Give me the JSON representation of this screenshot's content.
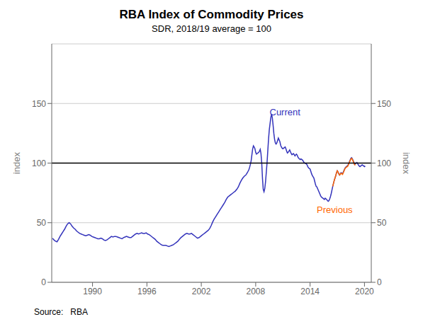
{
  "chart_data": {
    "type": "line",
    "title": "RBA Index of Commodity Prices",
    "subtitle": "SDR, 2018/19 average = 100",
    "source": "Source:   RBA",
    "ylabel": "index",
    "y2label": "index",
    "xlim": [
      1985.5,
      2020.75
    ],
    "xticks": [
      1990,
      1996,
      2002,
      2008,
      2014,
      2020
    ],
    "ylim": [
      0,
      200
    ],
    "yticks": [
      0,
      50,
      100,
      150
    ],
    "y2lim": [
      0,
      200
    ],
    "y2ticks": [
      0,
      50,
      100,
      150
    ],
    "grid": true,
    "reference_line": {
      "value": 100,
      "color": "#000000"
    },
    "annotations": [
      {
        "text": "Current",
        "x": 2009.3,
        "y": 143,
        "color": "#3333bb"
      },
      {
        "text": "Previous",
        "x": 2014.5,
        "y": 61,
        "color": "#ff6600"
      }
    ],
    "series": [
      {
        "color": "#3333bb",
        "x": [
          1985.583,
          1985.75,
          1985.917,
          1986.083,
          1986.25,
          1986.417,
          1986.583,
          1986.75,
          1986.917,
          1987.083,
          1987.25,
          1987.417,
          1987.583,
          1987.75,
          1987.917,
          1988.083,
          1988.25,
          1988.417,
          1988.583,
          1988.75,
          1988.917,
          1989.083,
          1989.25,
          1989.417,
          1989.583,
          1989.75,
          1989.917,
          1990.083,
          1990.25,
          1990.417,
          1990.583,
          1990.75,
          1990.917,
          1991.083,
          1991.25,
          1991.417,
          1991.583,
          1991.75,
          1991.917,
          1992.083,
          1992.25,
          1992.417,
          1992.583,
          1992.75,
          1992.917,
          1993.083,
          1993.25,
          1993.417,
          1993.583,
          1993.75,
          1993.917,
          1994.083,
          1994.25,
          1994.417,
          1994.583,
          1994.75,
          1994.917,
          1995.083,
          1995.25,
          1995.417,
          1995.583,
          1995.75,
          1995.917,
          1996.083,
          1996.25,
          1996.417,
          1996.583,
          1996.75,
          1996.917,
          1997.083,
          1997.25,
          1997.417,
          1997.583,
          1997.75,
          1997.917,
          1998.083,
          1998.25,
          1998.417,
          1998.583,
          1998.75,
          1998.917,
          1999.083,
          1999.25,
          1999.417,
          1999.583,
          1999.75,
          1999.917,
          2000.083,
          2000.25,
          2000.417,
          2000.583,
          2000.75,
          2000.917,
          2001.083,
          2001.25,
          2001.417,
          2001.583,
          2001.75,
          2001.917,
          2002.083,
          2002.25,
          2002.417,
          2002.583,
          2002.75,
          2002.917,
          2003.083,
          2003.25,
          2003.417,
          2003.583,
          2003.75,
          2003.917,
          2004.083,
          2004.25,
          2004.417,
          2004.583,
          2004.75,
          2004.917,
          2005.083,
          2005.25,
          2005.417,
          2005.583,
          2005.75,
          2005.917,
          2006.083,
          2006.25,
          2006.417,
          2006.583,
          2006.75,
          2006.917,
          2007.083,
          2007.25,
          2007.333,
          2007.417,
          2007.5,
          2007.583,
          2007.667,
          2007.75,
          2007.833,
          2007.917,
          2008.0,
          2008.083,
          2008.167,
          2008.25,
          2008.333,
          2008.417,
          2008.5,
          2008.583,
          2008.667,
          2008.75,
          2008.833,
          2008.917,
          2009.0,
          2009.083,
          2009.167,
          2009.25,
          2009.333,
          2009.417,
          2009.5,
          2009.583,
          2009.667,
          2009.75,
          2009.833,
          2009.917,
          2010.0,
          2010.083,
          2010.167,
          2010.25,
          2010.333,
          2010.417,
          2010.5,
          2010.583,
          2010.667,
          2010.75,
          2010.833,
          2010.917,
          2011.0,
          2011.083,
          2011.167,
          2011.25,
          2011.333,
          2011.417,
          2011.5,
          2011.583,
          2011.667,
          2011.75,
          2011.833,
          2011.917,
          2012.0,
          2012.083,
          2012.167,
          2012.25,
          2012.333,
          2012.417,
          2012.5,
          2012.583,
          2012.667,
          2012.75,
          2012.833,
          2012.917,
          2013.0,
          2013.083,
          2013.167,
          2013.25,
          2013.333,
          2013.417,
          2013.5,
          2013.583,
          2013.667,
          2013.75,
          2013.833,
          2013.917,
          2014.0,
          2014.083,
          2014.167,
          2014.25,
          2014.333,
          2014.417,
          2014.5,
          2014.583,
          2014.667,
          2014.75,
          2014.833,
          2014.917,
          2015.0,
          2015.083,
          2015.167,
          2015.25,
          2015.333,
          2015.417,
          2015.5,
          2015.583,
          2015.667,
          2015.75,
          2015.833,
          2015.917,
          2016.0,
          2016.083,
          2016.167,
          2016.25,
          2016.333,
          2016.417,
          2016.5,
          2016.583,
          2016.667,
          2016.75,
          2016.833,
          2016.917,
          2017.0,
          2017.083,
          2017.167,
          2017.25,
          2017.333,
          2017.417,
          2017.5,
          2017.583,
          2017.667,
          2017.75,
          2017.833,
          2017.917,
          2018.0,
          2018.083,
          2018.167,
          2018.25,
          2018.333,
          2018.417,
          2018.5,
          2018.583,
          2018.667,
          2018.75,
          2018.833,
          2018.917,
          2019.0,
          2019.083,
          2019.167,
          2019.25,
          2019.333,
          2019.417,
          2019.5,
          2019.583,
          2019.667,
          2019.75,
          2019.833,
          2019.917,
          2020.0,
          2020.083
        ],
        "values": [
          37.0,
          35.5,
          34.5,
          34.0,
          36.0,
          38.5,
          40.5,
          42.5,
          44.5,
          47.0,
          49.0,
          50.0,
          49.0,
          47.0,
          45.5,
          44.5,
          43.0,
          42.0,
          41.0,
          40.5,
          40.0,
          39.5,
          39.0,
          39.5,
          40.0,
          39.5,
          38.5,
          38.0,
          37.5,
          37.0,
          36.5,
          36.5,
          37.0,
          36.5,
          35.5,
          35.0,
          35.5,
          36.5,
          37.5,
          38.5,
          38.0,
          38.5,
          38.5,
          38.0,
          37.5,
          37.0,
          36.5,
          37.5,
          38.0,
          38.5,
          38.0,
          37.5,
          37.5,
          38.5,
          39.5,
          40.5,
          41.0,
          40.5,
          41.0,
          41.5,
          41.0,
          41.0,
          41.5,
          40.5,
          40.0,
          39.0,
          38.0,
          37.0,
          36.0,
          34.5,
          33.5,
          32.5,
          31.5,
          31.0,
          31.0,
          31.0,
          30.5,
          30.0,
          30.5,
          31.0,
          31.5,
          32.5,
          33.5,
          34.5,
          36.0,
          37.5,
          38.5,
          39.5,
          40.5,
          41.0,
          40.5,
          40.5,
          41.0,
          40.0,
          39.0,
          38.0,
          37.0,
          37.5,
          38.5,
          39.5,
          40.5,
          41.5,
          42.5,
          43.5,
          45.0,
          47.5,
          50.5,
          53.0,
          55.0,
          57.0,
          59.0,
          61.0,
          63.0,
          65.0,
          67.0,
          69.5,
          71.5,
          72.5,
          73.5,
          74.5,
          75.5,
          76.5,
          78.0,
          80.0,
          83.0,
          85.5,
          87.5,
          89.0,
          90.0,
          92.0,
          94.5,
          96.5,
          99.0,
          102.0,
          107.0,
          112.0,
          114.5,
          113.5,
          112.0,
          109.0,
          107.5,
          108.0,
          108.5,
          109.0,
          110.0,
          111.5,
          108.0,
          100.0,
          87.0,
          78.0,
          76.0,
          78.5,
          84.0,
          92.0,
          100.0,
          110.0,
          120.0,
          128.0,
          133.0,
          138.0,
          141.0,
          138.0,
          132.0,
          125.0,
          120.0,
          117.0,
          116.0,
          117.0,
          119.0,
          121.0,
          119.5,
          118.0,
          115.0,
          113.5,
          112.5,
          112.0,
          112.5,
          113.0,
          113.5,
          112.0,
          110.0,
          108.5,
          109.0,
          110.0,
          111.0,
          109.5,
          108.0,
          107.0,
          107.5,
          108.0,
          107.0,
          106.0,
          107.0,
          107.5,
          106.5,
          105.0,
          104.0,
          103.5,
          103.0,
          103.5,
          103.0,
          102.5,
          101.5,
          100.5,
          100.0,
          99.5,
          99.5,
          98.5,
          97.0,
          96.0,
          95.5,
          95.0,
          93.0,
          91.0,
          89.5,
          88.5,
          87.5,
          85.0,
          82.5,
          80.5,
          80.0,
          78.5,
          77.0,
          75.5,
          74.0,
          72.5,
          71.5,
          71.0,
          70.5,
          70.0,
          69.5,
          70.5,
          70.0,
          69.5,
          68.5,
          68.0,
          68.5,
          70.0,
          72.0,
          74.5,
          77.5,
          80.5,
          83.0,
          85.5,
          87.5,
          89.5,
          92.0,
          93.5,
          92.5,
          91.0,
          90.0,
          91.0,
          92.0,
          91.5,
          91.0,
          92.5,
          94.0,
          95.5,
          96.5,
          97.0,
          97.5,
          98.0,
          99.5,
          101.0,
          102.5,
          104.0,
          104.5,
          103.5,
          102.0,
          100.5,
          99.0,
          99.5,
          100.0,
          100.5,
          99.5,
          98.5,
          97.5,
          97.0,
          97.5,
          98.0,
          98.5,
          98.0,
          97.5,
          97.0,
          97.5
        ]
      },
      {
        "color": "#ff6600",
        "x": [
          2016.5,
          2016.583,
          2016.667,
          2016.75,
          2016.833,
          2016.917,
          2017.0,
          2017.083,
          2017.167,
          2017.25,
          2017.333,
          2017.417,
          2017.5,
          2017.583,
          2017.667,
          2017.75,
          2017.833,
          2017.917,
          2018.0,
          2018.083,
          2018.167,
          2018.25,
          2018.333,
          2018.417,
          2018.5,
          2018.583,
          2018.667,
          2018.75,
          2018.833,
          2018.917,
          2019.0
        ],
        "values": [
          80.5,
          83.0,
          85.5,
          87.5,
          89.5,
          92.0,
          93.5,
          92.5,
          91.0,
          90.0,
          90.5,
          91.5,
          91.0,
          90.5,
          92.0,
          93.5,
          95.0,
          96.0,
          96.5,
          97.0,
          97.5,
          99.0,
          100.5,
          102.0,
          103.5,
          104.0,
          103.0,
          101.5,
          100.0,
          98.5,
          98.5
        ]
      }
    ]
  }
}
